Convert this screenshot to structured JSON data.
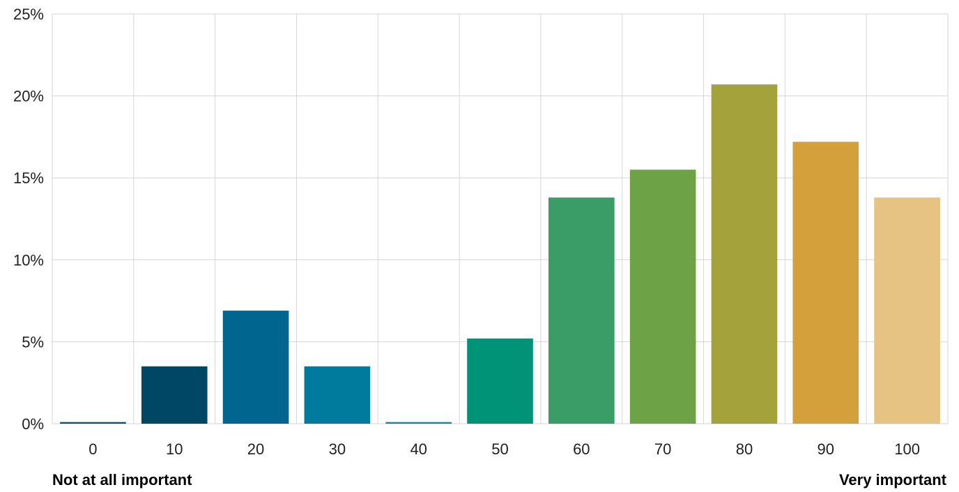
{
  "chart_data": {
    "type": "bar",
    "categories": [
      "0",
      "10",
      "20",
      "30",
      "40",
      "50",
      "60",
      "70",
      "80",
      "90",
      "100"
    ],
    "values": [
      0.1,
      3.5,
      6.9,
      3.5,
      0.1,
      5.2,
      13.8,
      15.5,
      20.7,
      17.2,
      13.8
    ],
    "colors": [
      "#00587a",
      "#004766",
      "#00658f",
      "#007b9e",
      "#0a8ca3",
      "#009377",
      "#3a9c66",
      "#6da247",
      "#a4a23a",
      "#d3a03c",
      "#e6c283"
    ],
    "ylim": [
      0,
      25
    ],
    "yticks": [
      0,
      5,
      10,
      15,
      20,
      25
    ],
    "ytick_labels": [
      "0%",
      "5%",
      "10%",
      "15%",
      "20%",
      "25%"
    ],
    "xlabel_left": "Not at all important",
    "xlabel_right": "Very important",
    "grid": true,
    "title": "",
    "xlabel": "",
    "ylabel": ""
  }
}
